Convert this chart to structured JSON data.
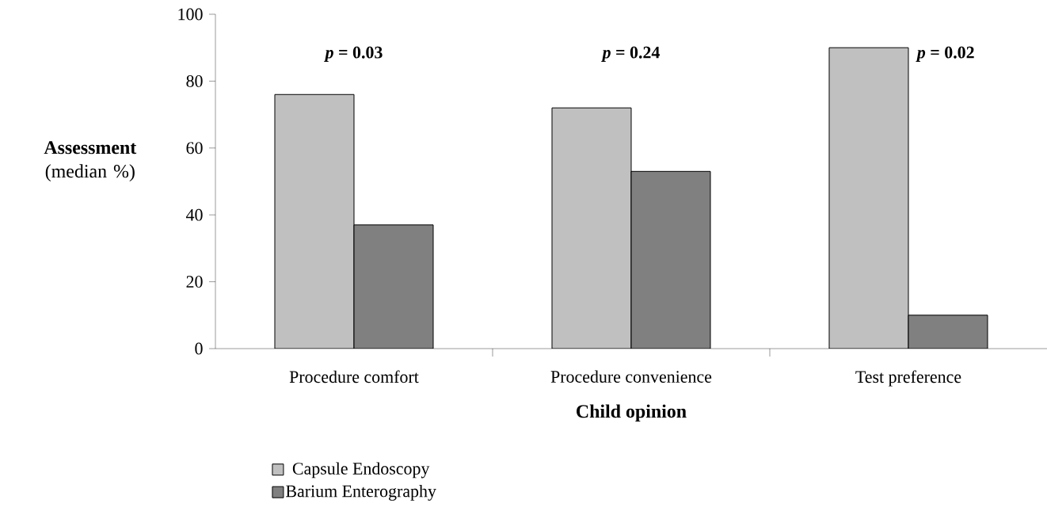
{
  "chart_data": {
    "type": "bar",
    "xlabel": "Child opinion",
    "ylabel": "**Assessment** (median %)",
    "categories": [
      "Procedure comfort",
      "Procedure convenience",
      "Test preference"
    ],
    "series": [
      {
        "name": "Capsule Endoscopy",
        "color": "#c0c0c0",
        "values": [
          76,
          72,
          90
        ]
      },
      {
        "name": "Barium Enterography",
        "color": "#808080",
        "values": [
          37,
          53,
          10
        ]
      }
    ],
    "ylim": [
      0,
      100
    ],
    "yticks": [
      0,
      20,
      40,
      60,
      80,
      100
    ],
    "grid": false,
    "legend": "bottom left",
    "annotations": [
      "*p* = 0.03",
      "*p* = 0.24",
      "*p* = 0.02"
    ]
  }
}
